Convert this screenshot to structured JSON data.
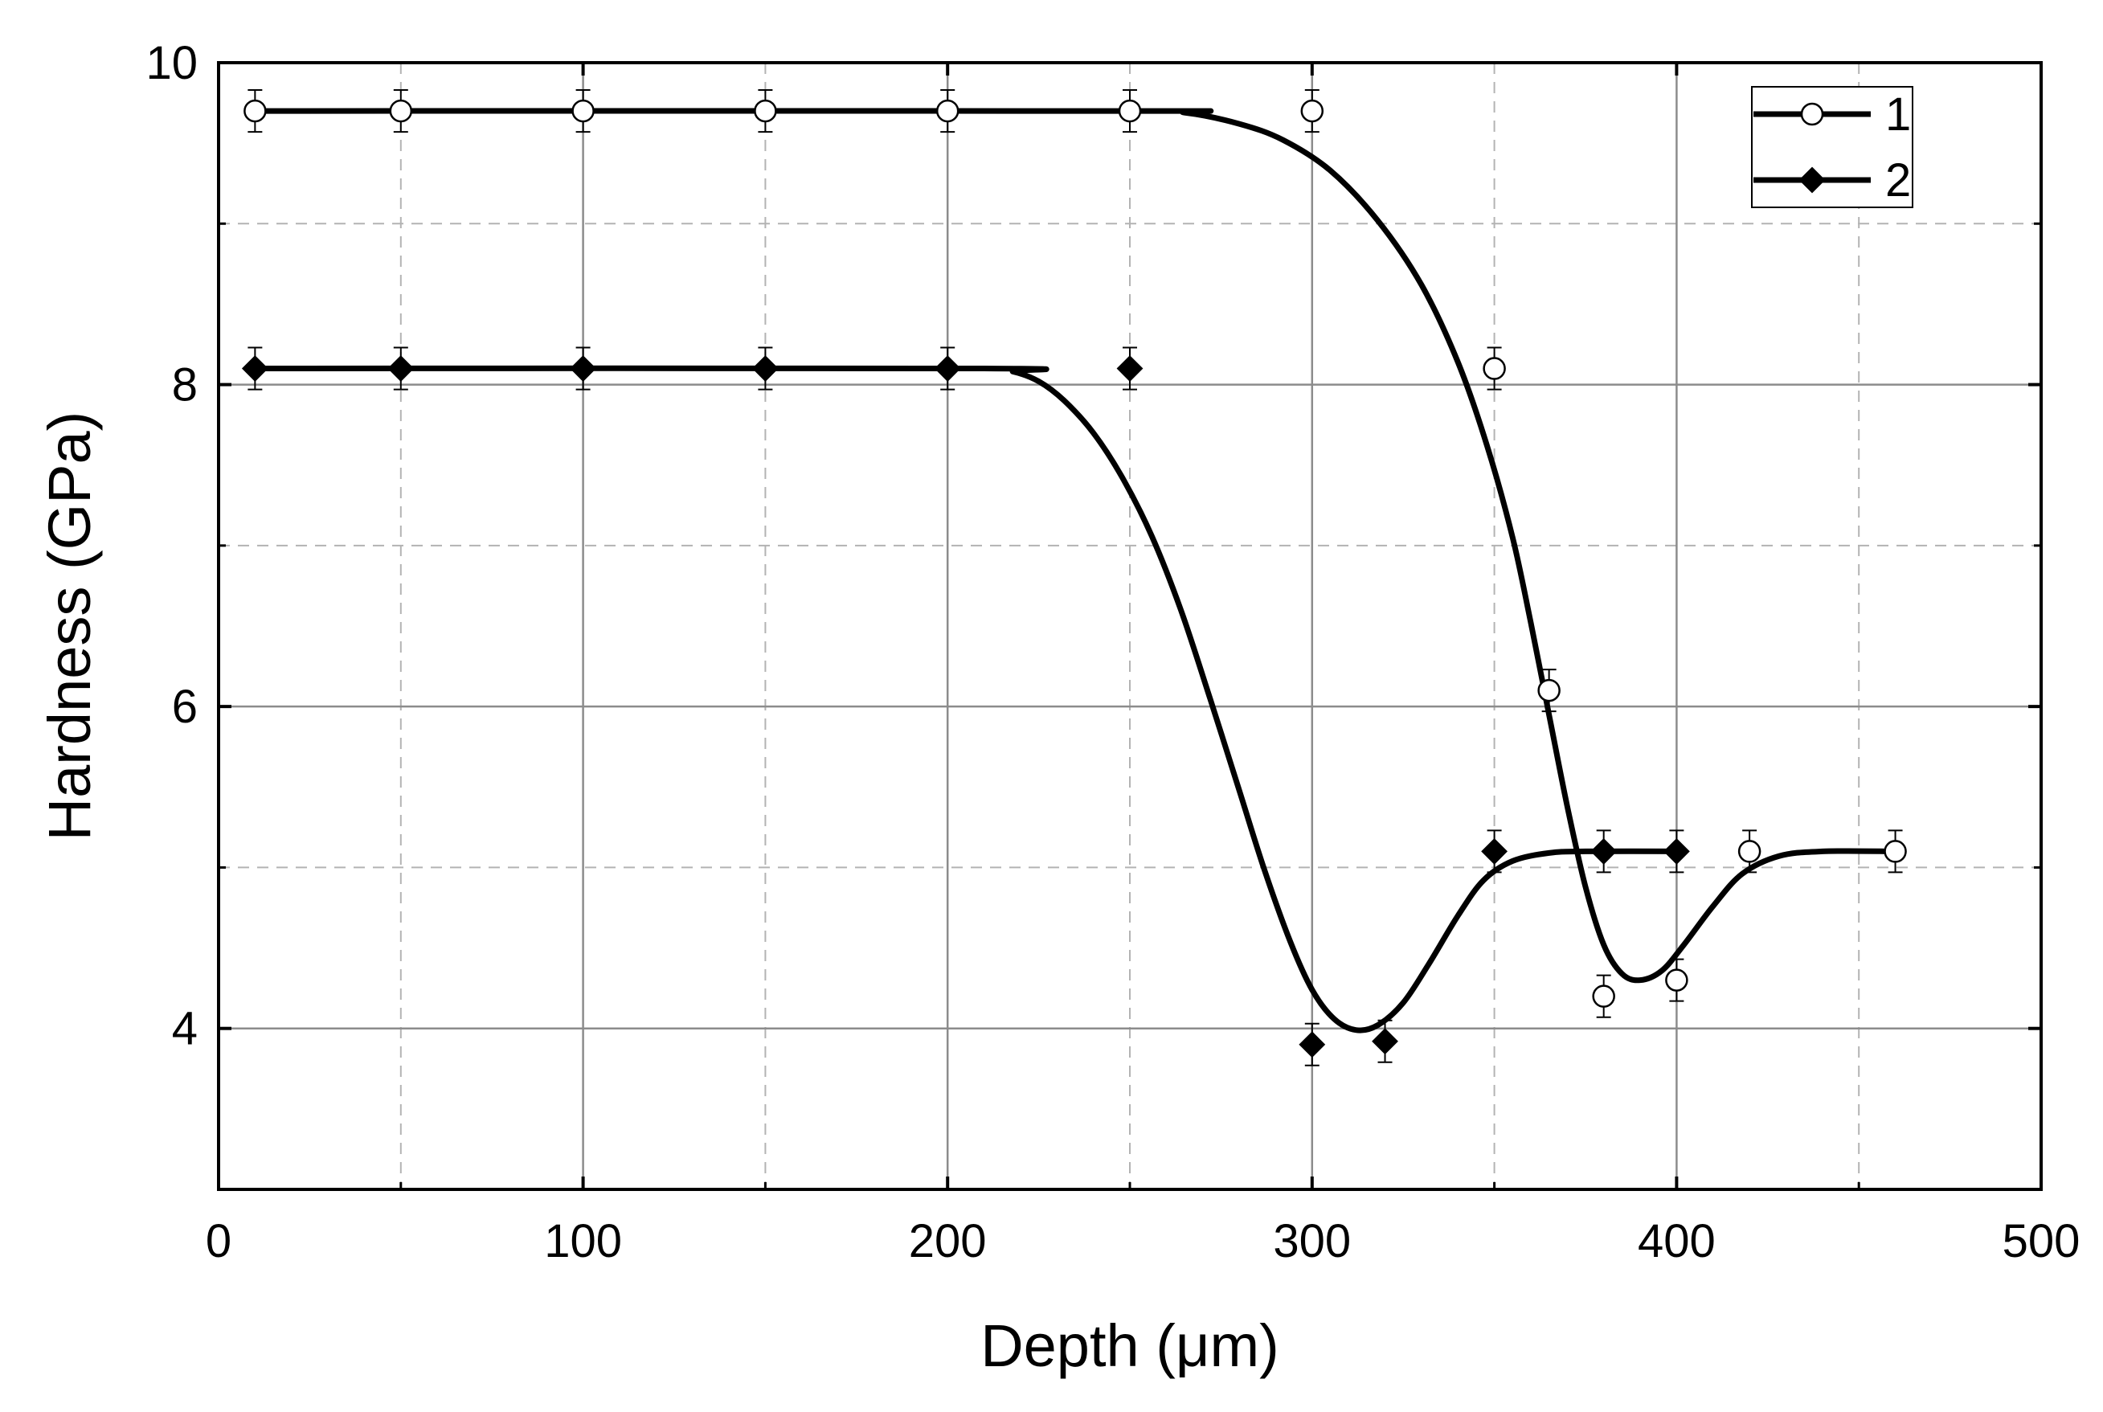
{
  "chart_data": {
    "type": "line",
    "xlabel": "Depth (μm)",
    "ylabel": "Hardness (GPa)",
    "xlim": [
      0,
      500
    ],
    "ylim": [
      3,
      10
    ],
    "xticks": [
      0,
      100,
      200,
      300,
      400,
      500
    ],
    "yticks": [
      4,
      6,
      8,
      10
    ],
    "x_minor_grid": [
      50,
      150,
      250,
      350,
      450
    ],
    "y_minor_grid": [
      5,
      7,
      9
    ],
    "grid": true,
    "legend_position": "top-right",
    "series": [
      {
        "name": "1",
        "marker": "open-circle",
        "points": [
          {
            "x": 10,
            "y": 9.7
          },
          {
            "x": 50,
            "y": 9.7
          },
          {
            "x": 100,
            "y": 9.7
          },
          {
            "x": 150,
            "y": 9.7
          },
          {
            "x": 200,
            "y": 9.7
          },
          {
            "x": 250,
            "y": 9.7
          },
          {
            "x": 300,
            "y": 9.7
          },
          {
            "x": 350,
            "y": 8.1
          },
          {
            "x": 365,
            "y": 6.1
          },
          {
            "x": 380,
            "y": 4.2
          },
          {
            "x": 400,
            "y": 4.3
          },
          {
            "x": 420,
            "y": 5.1
          },
          {
            "x": 460,
            "y": 5.1
          }
        ],
        "error": 0.13,
        "fit_curve": [
          [
            10,
            9.7
          ],
          [
            250,
            9.7
          ],
          [
            265,
            9.69
          ],
          [
            280,
            9.62
          ],
          [
            292,
            9.52
          ],
          [
            305,
            9.33
          ],
          [
            318,
            9.02
          ],
          [
            330,
            8.62
          ],
          [
            340,
            8.14
          ],
          [
            348,
            7.62
          ],
          [
            355,
            7.05
          ],
          [
            360,
            6.52
          ],
          [
            365,
            5.95
          ],
          [
            370,
            5.38
          ],
          [
            375,
            4.88
          ],
          [
            380,
            4.52
          ],
          [
            385,
            4.34
          ],
          [
            390,
            4.3
          ],
          [
            396,
            4.36
          ],
          [
            402,
            4.52
          ],
          [
            410,
            4.76
          ],
          [
            418,
            4.96
          ],
          [
            428,
            5.07
          ],
          [
            440,
            5.1
          ],
          [
            460,
            5.1
          ]
        ]
      },
      {
        "name": "2",
        "marker": "filled-diamond",
        "points": [
          {
            "x": 10,
            "y": 8.1
          },
          {
            "x": 50,
            "y": 8.1
          },
          {
            "x": 100,
            "y": 8.1
          },
          {
            "x": 150,
            "y": 8.1
          },
          {
            "x": 200,
            "y": 8.1
          },
          {
            "x": 250,
            "y": 8.1
          },
          {
            "x": 300,
            "y": 3.9
          },
          {
            "x": 320,
            "y": 3.92
          },
          {
            "x": 350,
            "y": 5.1
          },
          {
            "x": 380,
            "y": 5.1
          },
          {
            "x": 400,
            "y": 5.1
          }
        ],
        "error": 0.13,
        "fit_curve": [
          [
            10,
            8.1
          ],
          [
            210,
            8.1
          ],
          [
            218,
            8.08
          ],
          [
            225,
            8.02
          ],
          [
            232,
            7.9
          ],
          [
            240,
            7.7
          ],
          [
            248,
            7.42
          ],
          [
            256,
            7.06
          ],
          [
            264,
            6.6
          ],
          [
            272,
            6.05
          ],
          [
            280,
            5.48
          ],
          [
            287,
            4.98
          ],
          [
            294,
            4.54
          ],
          [
            300,
            4.24
          ],
          [
            306,
            4.06
          ],
          [
            312,
            3.99
          ],
          [
            318,
            4.02
          ],
          [
            325,
            4.16
          ],
          [
            332,
            4.4
          ],
          [
            340,
            4.7
          ],
          [
            347,
            4.92
          ],
          [
            355,
            5.04
          ],
          [
            365,
            5.09
          ],
          [
            375,
            5.1
          ],
          [
            400,
            5.1
          ]
        ]
      }
    ]
  }
}
